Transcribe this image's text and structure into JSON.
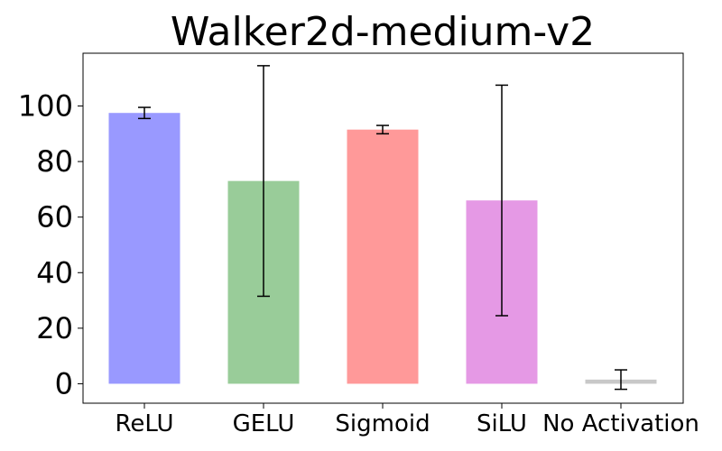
{
  "chart_data": {
    "type": "bar",
    "title": "Walker2d-medium-v2",
    "xlabel": "",
    "ylabel": "",
    "categories": [
      "ReLU",
      "GELU",
      "Sigmoid",
      "SiLU",
      "No Activation"
    ],
    "values": [
      97.5,
      73.0,
      91.5,
      66.0,
      1.5
    ],
    "errors": [
      2.0,
      41.5,
      1.5,
      41.5,
      3.5
    ],
    "colors": [
      "#9999ff",
      "#99cc99",
      "#ff9999",
      "#e599e5",
      "#c8c8c8"
    ],
    "ylim": [
      -7,
      119
    ],
    "yticks": [
      0,
      20,
      40,
      60,
      80,
      100
    ],
    "grid": false,
    "legend": "none"
  }
}
